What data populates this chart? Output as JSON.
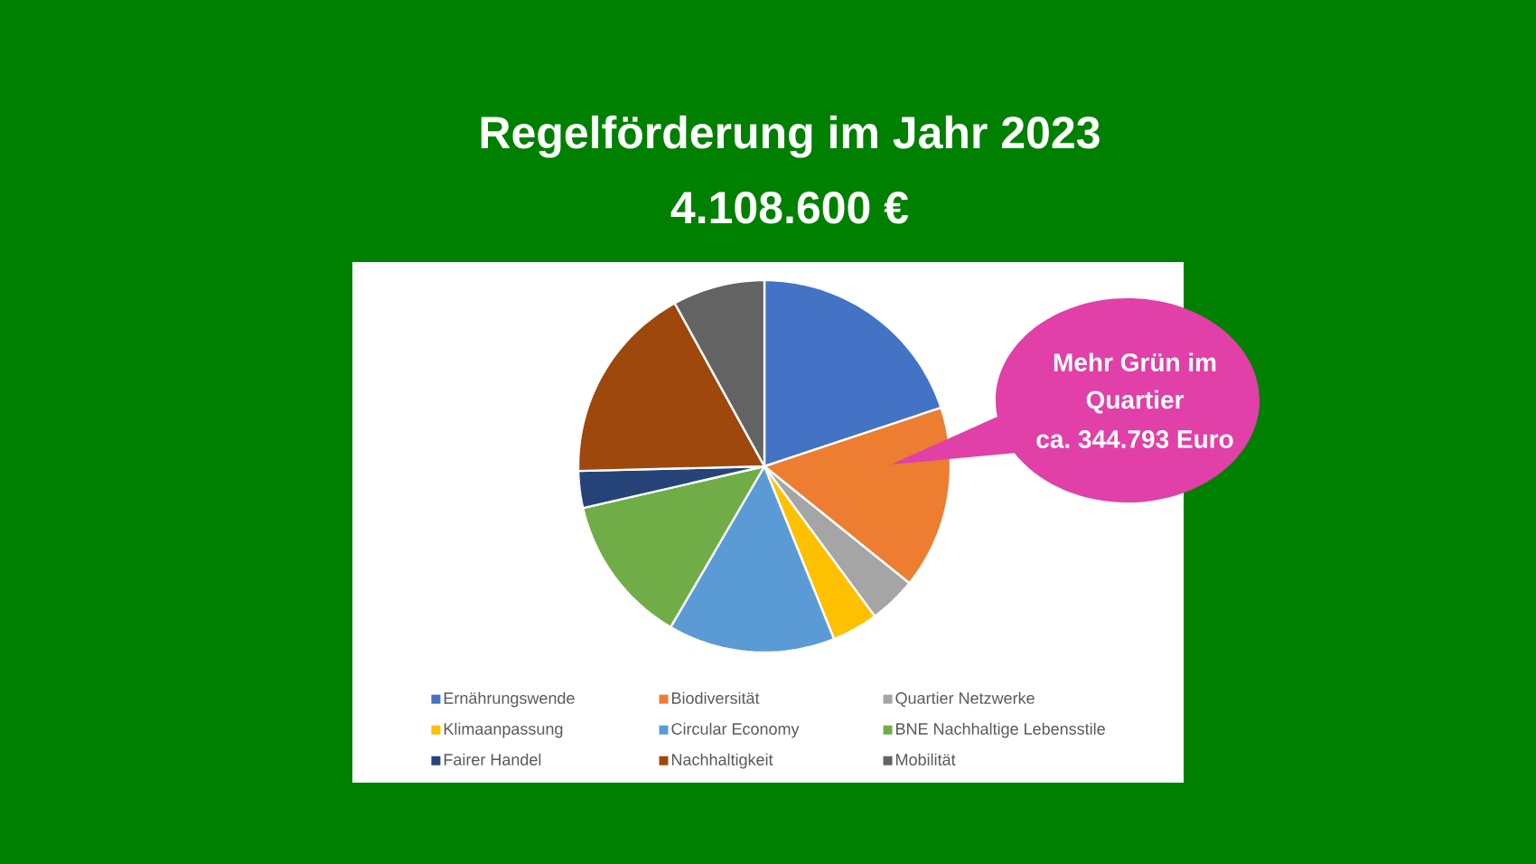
{
  "chart_data": {
    "type": "pie",
    "title": "Regelförderung im Jahr 2023",
    "subtitle": "4.108.600 €",
    "categories": [
      "Ernährungswende",
      "Biodiversität",
      "Quartier Netzwerke",
      "Klimaanpassung",
      "Circular Economy",
      "BNE Nachhaltige Lebensstile",
      "Fairer Handel",
      "Nachhaltigkeit",
      "Mobilität"
    ],
    "values": [
      19.9,
      15.9,
      4.1,
      4.0,
      14.5,
      13.0,
      3.2,
      17.4,
      8.0
    ],
    "colors": [
      "#4472c4",
      "#ed7d31",
      "#a5a5a5",
      "#ffc000",
      "#5b9bd5",
      "#70ad47",
      "#264478",
      "#9e480e",
      "#636363"
    ],
    "legend": "bottom",
    "annotations": [
      "Mehr Grün im Quartier",
      "ca. 344.793 Euro"
    ]
  }
}
